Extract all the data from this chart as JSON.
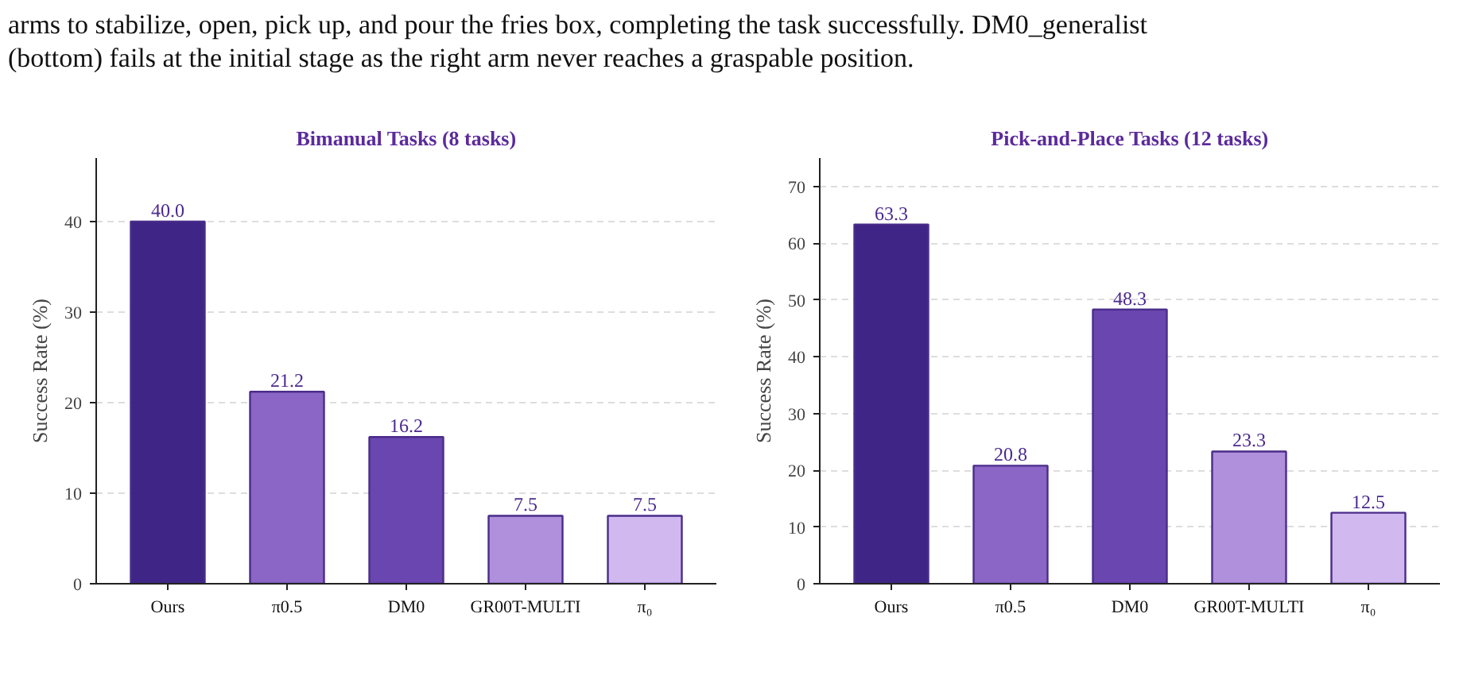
{
  "chart_data": [
    {
      "type": "other",
      "annotations": [
        "arms to stabilize, open, pick up, and pour the fries box, completing the task successfully. DM0_generalist",
        "(bottom) fails at the initial stage as the right arm never reaches a graspable position."
      ]
    },
    {
      "type": "bar",
      "title": "Bimanual Tasks (8 tasks)",
      "ylabel": "Success Rate (%)",
      "categories": [
        "Ours",
        "π0.5",
        "DM0",
        "GR00T-MULTI",
        "π₀"
      ],
      "values": [
        40.0,
        21.2,
        16.2,
        7.5,
        7.5
      ],
      "value_labels": [
        "40.0",
        "21.2",
        "16.2",
        "7.5",
        "7.5"
      ],
      "colors": [
        "#3f2585",
        "#8b66c6",
        "#6a46b0",
        "#b08fdc",
        "#d1b8ef"
      ],
      "ylim": [
        0,
        47
      ],
      "yticks": [
        0,
        10,
        20,
        30,
        40
      ],
      "grid": "y"
    },
    {
      "type": "bar",
      "title": "Pick-and-Place Tasks (12 tasks)",
      "ylabel": "Success Rate (%)",
      "categories": [
        "Ours",
        "π0.5",
        "DM0",
        "GR00T-MULTI",
        "π₀"
      ],
      "values": [
        63.3,
        20.8,
        48.3,
        23.3,
        12.5
      ],
      "value_labels": [
        "63.3",
        "20.8",
        "48.3",
        "23.3",
        "12.5"
      ],
      "colors": [
        "#3f2585",
        "#8b66c6",
        "#6a46b0",
        "#b08fdc",
        "#d1b8ef"
      ],
      "ylim": [
        0,
        75
      ],
      "yticks": [
        0,
        10,
        20,
        30,
        40,
        50,
        60,
        70
      ],
      "grid": "y"
    }
  ]
}
